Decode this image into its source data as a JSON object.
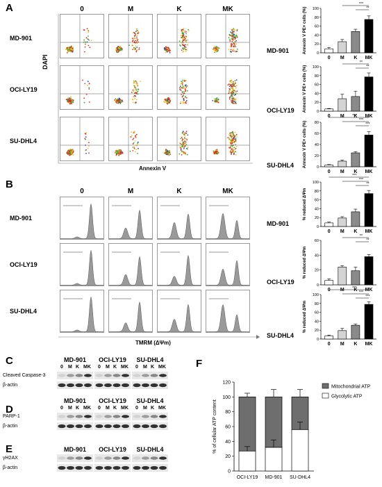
{
  "panels": {
    "A": "A",
    "B": "B",
    "C": "C",
    "D": "D",
    "E": "E",
    "F": "F"
  },
  "conditions": [
    "0",
    "M",
    "K",
    "MK"
  ],
  "cell_lines": [
    "MD-901",
    "OCI-LY19",
    "SU-DHL4"
  ],
  "panel_a": {
    "x_axis": "Annexin V",
    "y_axis": "DAPI"
  },
  "panel_b": {
    "x_axis": "TMRM (ΔΨm)"
  },
  "western": {
    "groups": [
      "MD-901",
      "OCI-LY19",
      "SU-DHL4"
    ],
    "lanes": [
      "0",
      "M",
      "K",
      "MK"
    ],
    "C": {
      "label": "Cleaved Caspase-3",
      "loading": "β-actin"
    },
    "D": {
      "label": "PARP-1",
      "loading": "β-actin"
    },
    "E": {
      "label": "γH2AX",
      "loading": "β-actin"
    }
  },
  "chart_data": [
    {
      "type": "bar",
      "title": "MD-901",
      "ylabel": "Annexin V PE+ cells (%)",
      "categories": [
        "0",
        "M",
        "K",
        "MK"
      ],
      "values": [
        9,
        25,
        48,
        75
      ],
      "errors": [
        3,
        5,
        5,
        8
      ],
      "ylim": [
        0,
        100
      ],
      "yticks": [
        0,
        20,
        40,
        60,
        80,
        100
      ],
      "significance": [
        {
          "pair": [
            "M",
            "MK"
          ],
          "label": "***"
        },
        {
          "pair": [
            "K",
            "MK"
          ],
          "label": "**"
        }
      ]
    },
    {
      "type": "bar",
      "title": "OCI-LY19",
      "ylabel": "Annexin V PE+ cells (%)",
      "categories": [
        "0",
        "M",
        "K",
        "MK"
      ],
      "values": [
        5,
        28,
        33,
        77
      ],
      "errors": [
        1,
        10,
        12,
        9
      ],
      "ylim": [
        0,
        100
      ],
      "yticks": [
        0,
        20,
        40,
        60,
        80,
        100
      ],
      "significance": [
        {
          "pair": [
            "M",
            "MK"
          ],
          "label": "**"
        },
        {
          "pair": [
            "K",
            "MK"
          ],
          "label": "**"
        }
      ]
    },
    {
      "type": "bar",
      "title": "SU-DHL4",
      "ylabel": "Annexin V PE+ cells (%)",
      "categories": [
        "0",
        "M",
        "K",
        "MK"
      ],
      "values": [
        3,
        10,
        25,
        57
      ],
      "errors": [
        1,
        2,
        2,
        6
      ],
      "ylim": [
        0,
        80
      ],
      "yticks": [
        0,
        20,
        40,
        60,
        80
      ],
      "significance": [
        {
          "pair": [
            "0",
            "MK"
          ],
          "label": "***"
        },
        {
          "pair": [
            "M",
            "MK"
          ],
          "label": "***"
        },
        {
          "pair": [
            "K",
            "MK"
          ],
          "label": "***"
        }
      ]
    },
    {
      "type": "bar",
      "title": "MD-901",
      "ylabel": "% reduced ΔΨm",
      "categories": [
        "0",
        "M",
        "K",
        "MK"
      ],
      "values": [
        8,
        19,
        33,
        74
      ],
      "errors": [
        2,
        3,
        6,
        7
      ],
      "ylim": [
        0,
        100
      ],
      "yticks": [
        0,
        20,
        40,
        60,
        80,
        100
      ],
      "significance": [
        {
          "pair": [
            "0",
            "MK"
          ],
          "label": "***"
        },
        {
          "pair": [
            "M",
            "MK"
          ],
          "label": "***"
        },
        {
          "pair": [
            "K",
            "MK"
          ],
          "label": "**"
        }
      ]
    },
    {
      "type": "bar",
      "title": "OCI-LY19",
      "ylabel": "% reduced ΔΨm",
      "categories": [
        "0",
        "M",
        "K",
        "MK"
      ],
      "values": [
        6,
        24,
        19,
        38
      ],
      "errors": [
        2,
        2,
        5,
        3
      ],
      "ylim": [
        0,
        60
      ],
      "yticks": [
        0,
        20,
        40,
        60
      ],
      "significance": [
        {
          "pair": [
            "M",
            "MK"
          ],
          "label": "**"
        },
        {
          "pair": [
            "K",
            "MK"
          ],
          "label": "**"
        }
      ]
    },
    {
      "type": "bar",
      "title": "SU-DHL4",
      "ylabel": "% reduced ΔΨm",
      "categories": [
        "0",
        "M",
        "K",
        "MK"
      ],
      "values": [
        7,
        19,
        31,
        78
      ],
      "errors": [
        2,
        5,
        3,
        6
      ],
      "ylim": [
        0,
        100
      ],
      "yticks": [
        0,
        20,
        40,
        60,
        80,
        100
      ],
      "significance": [
        {
          "pair": [
            "0",
            "MK"
          ],
          "label": "***"
        },
        {
          "pair": [
            "M",
            "MK"
          ],
          "label": "***"
        },
        {
          "pair": [
            "K",
            "MK"
          ],
          "label": "***"
        }
      ]
    },
    {
      "type": "stacked_bar",
      "ylabel": "% of cellular ATP content",
      "categories": [
        "OCI-LY19",
        "MD-901",
        "SU-DHL4"
      ],
      "ylim": [
        0,
        120
      ],
      "yticks": [
        0,
        20,
        40,
        60,
        80,
        100,
        120
      ],
      "series": [
        {
          "name": "Glycolytic ATP",
          "values": [
            27,
            32,
            56
          ],
          "errors": [
            6,
            10,
            10
          ]
        },
        {
          "name": "Mitochondrial ATP",
          "values": [
            73,
            68,
            44
          ],
          "errors": [
            5,
            10,
            10
          ]
        }
      ],
      "legend": [
        "Mitochondrial ATP",
        "Glycolytic ATP"
      ],
      "legend_position": "top-right"
    }
  ]
}
